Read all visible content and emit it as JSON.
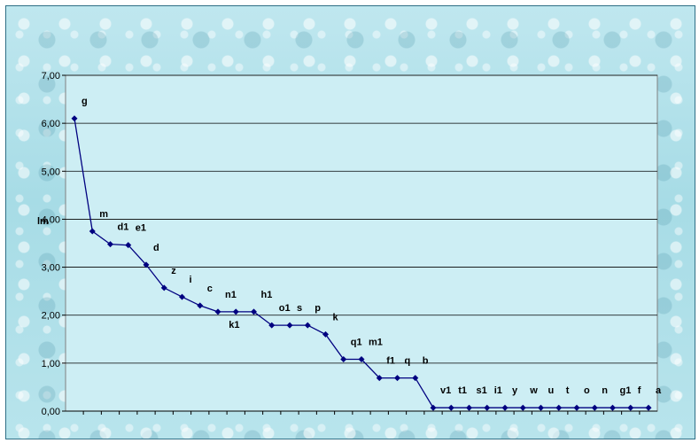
{
  "chart_data": {
    "type": "line",
    "title": "",
    "xlabel": "",
    "ylabel": "",
    "ylim": [
      0,
      7
    ],
    "yticks": [
      "0,00",
      "1,00",
      "2,00",
      "3,00",
      "4,00",
      "5,00",
      "6,00",
      "7,00"
    ],
    "grid": true,
    "legend": "none",
    "series": [
      {
        "name": "lm",
        "color": "#000080",
        "points": [
          {
            "label": "g",
            "value": 6.1
          },
          {
            "label": "m",
            "value": 3.75
          },
          {
            "label": "d1",
            "value": 3.48
          },
          {
            "label": "e1",
            "value": 3.46
          },
          {
            "label": "d",
            "value": 3.05
          },
          {
            "label": "z",
            "value": 2.57
          },
          {
            "label": "i",
            "value": 2.38
          },
          {
            "label": "c",
            "value": 2.2
          },
          {
            "label": "n1",
            "value": 2.07
          },
          {
            "label": "k1",
            "value": 2.07
          },
          {
            "label": "h1",
            "value": 2.07
          },
          {
            "label": "o1",
            "value": 1.79
          },
          {
            "label": "s",
            "value": 1.79
          },
          {
            "label": "p",
            "value": 1.79
          },
          {
            "label": "k",
            "value": 1.6
          },
          {
            "label": "q1",
            "value": 1.08
          },
          {
            "label": "m1",
            "value": 1.08
          },
          {
            "label": "f1",
            "value": 0.69
          },
          {
            "label": "q",
            "value": 0.69
          },
          {
            "label": "b",
            "value": 0.69
          },
          {
            "label": "v1",
            "value": 0.07
          },
          {
            "label": "t1",
            "value": 0.07
          },
          {
            "label": "s1",
            "value": 0.07
          },
          {
            "label": "i1",
            "value": 0.07
          },
          {
            "label": "y",
            "value": 0.07
          },
          {
            "label": "w",
            "value": 0.07
          },
          {
            "label": "u",
            "value": 0.07
          },
          {
            "label": "t",
            "value": 0.07
          },
          {
            "label": "o",
            "value": 0.07
          },
          {
            "label": "n",
            "value": 0.07
          },
          {
            "label": "g1",
            "value": 0.07
          },
          {
            "label": "f",
            "value": 0.07
          },
          {
            "label": "a",
            "value": 0.07
          }
        ]
      }
    ]
  }
}
